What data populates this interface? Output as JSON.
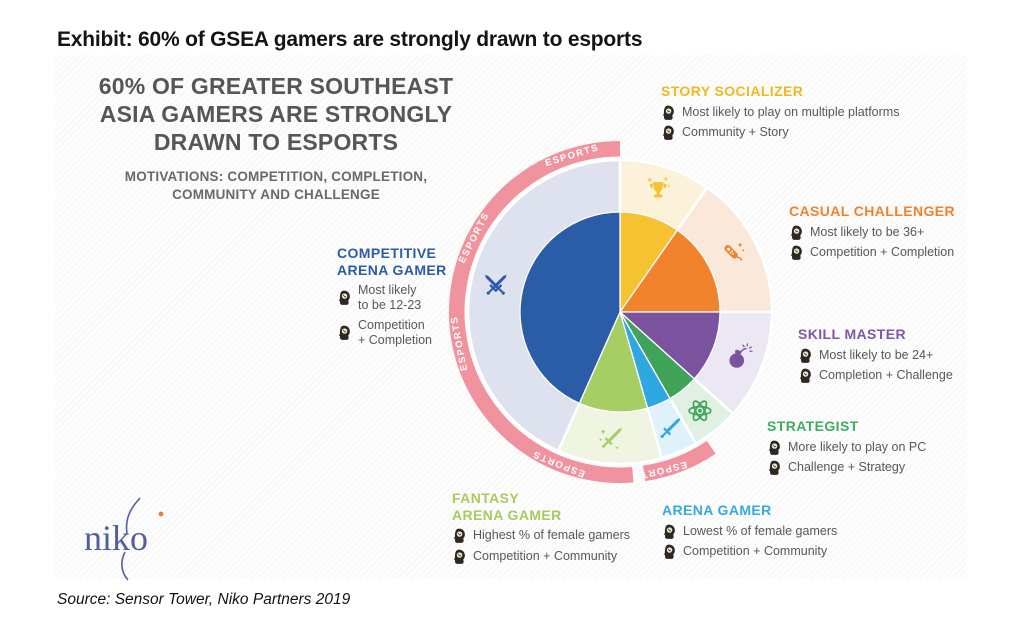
{
  "page": {
    "exhibit_title": "Exhibit: 60% of GSEA gamers are strongly drawn to esports",
    "source_note": "Source: Sensor Tower, Niko Partners 2019",
    "logo_text": "niko"
  },
  "infographic": {
    "headline": "60% OF GREATER SOUTHEAST\nASIA GAMERS ARE STRONGLY\nDRAWN TO ESPORTS",
    "subheadline": "MOTIVATIONS: COMPETITION, COMPLETION,\nCOMMUNITY AND CHALLENGE",
    "bullet_icon": "thinking-head-icon"
  },
  "personas": [
    {
      "label": "STORY SOCIALIZER",
      "color": "#EFB920",
      "bullets": [
        "Most likely to play on multiple platforms",
        "Community + Story"
      ]
    },
    {
      "label": "CASUAL CHALLENGER",
      "color": "#F0822B",
      "bullets": [
        "Most likely to be 36+",
        "Competition + Completion"
      ]
    },
    {
      "label": "SKILL MASTER",
      "color": "#7C58A5",
      "bullets": [
        "Most likely to be 24+",
        "Completion + Challenge"
      ]
    },
    {
      "label": "STRATEGIST",
      "color": "#3CAE5E",
      "bullets": [
        "More likely to play on PC",
        "Challenge + Strategy"
      ]
    },
    {
      "label": "ARENA GAMER",
      "color": "#36A9E1",
      "bullets": [
        "Lowest % of female gamers",
        "Competition + Community"
      ]
    },
    {
      "label": "FANTASY\nARENA GAMER",
      "color": "#A8CB5E",
      "bullets": [
        "Highest % of female gamers",
        "Competition + Community"
      ]
    },
    {
      "label": "COMPETITIVE\nARENA GAMER",
      "color": "#2B5CA8",
      "bullets": [
        "Most likely\nto be 12-23",
        "Competition\n+ Completion"
      ]
    }
  ],
  "chart_data": {
    "type": "pie",
    "title": "60% OF GREATER SOUTHEAST ASIA GAMERS ARE STRONGLY DRAWN TO ESPORTS",
    "subtitle": "MOTIVATIONS: COMPETITION, COMPLETION, COMMUNITY AND CHALLENGE",
    "units": "share of gamers, % (estimated from wedge angles; values not labeled on chart)",
    "segments": [
      {
        "name": "Story Socializer",
        "value": 10,
        "start_angle": 0,
        "end_angle": 35,
        "color": "#F5C232",
        "pastel": "#FCF2DA",
        "icon": "trophy-sparkles-icon"
      },
      {
        "name": "Casual Challenger",
        "value": 15,
        "start_angle": 35,
        "end_angle": 90,
        "color": "#F0832B",
        "pastel": "#FAE9DA",
        "icon": "game-remote-icon"
      },
      {
        "name": "Skill Master",
        "value": 12,
        "start_angle": 90,
        "end_angle": 132,
        "color": "#7B539F",
        "pastel": "#ECE8F3",
        "icon": "bomb-icon"
      },
      {
        "name": "Strategist",
        "value": 5,
        "start_angle": 132,
        "end_angle": 150,
        "color": "#3FA45A",
        "pastel": "#E0F0E3",
        "icon": "atom-icon"
      },
      {
        "name": "Arena Gamer",
        "value": 4,
        "start_angle": 150,
        "end_angle": 164,
        "color": "#2FA7E0",
        "pastel": "#DFF2FB",
        "icon": "sword-icon"
      },
      {
        "name": "Fantasy Arena Gamer",
        "value": 11,
        "start_angle": 164,
        "end_angle": 204,
        "color": "#A6CE64",
        "pastel": "#EFF5E0",
        "icon": "magic-sword-icon"
      },
      {
        "name": "Competitive Arena Gamer",
        "value": 43,
        "start_angle": 204,
        "end_angle": 360,
        "color": "#2B5CA8",
        "pastel": "#DEE2EE",
        "icon": "crossed-swords-icon"
      }
    ],
    "esports_arc": {
      "label": "ESPORTS",
      "color": "#F0939E",
      "text_color": "#FFFFFF",
      "start_angle": 146,
      "end_angle": 360,
      "gap_angles": [
        [
          171.5,
          175.5
        ]
      ],
      "label_angles": [
        166,
        202,
        259,
        297,
        343
      ],
      "esports_share": 60
    },
    "legend_position": "around-chart",
    "grid": false
  }
}
